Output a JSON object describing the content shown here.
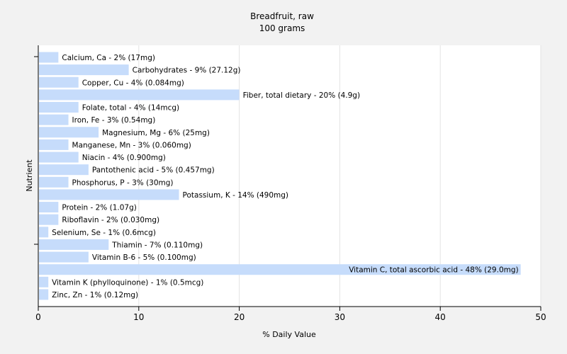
{
  "chart_data": {
    "type": "bar",
    "orientation": "horizontal",
    "title": "Breadfruit, raw",
    "subtitle": "100 grams",
    "xlabel": "% Daily Value",
    "ylabel": "Nutrient",
    "xlim": [
      0,
      50
    ],
    "xticks": [
      0,
      10,
      20,
      30,
      40,
      50
    ],
    "grid": true,
    "bar_color": "#c6dcfb",
    "categories": [
      "Calcium, Ca",
      "Carbohydrates",
      "Copper, Cu",
      "Fiber, total dietary",
      "Folate, total",
      "Iron, Fe",
      "Magnesium, Mg",
      "Manganese, Mn",
      "Niacin",
      "Pantothenic acid",
      "Phosphorus, P",
      "Potassium, K",
      "Protein",
      "Riboflavin",
      "Selenium, Se",
      "Thiamin",
      "Vitamin B-6",
      "Vitamin C, total ascorbic acid",
      "Vitamin K (phylloquinone)",
      "Zinc, Zn"
    ],
    "values": [
      2,
      9,
      4,
      20,
      4,
      3,
      6,
      3,
      4,
      5,
      3,
      14,
      2,
      2,
      1,
      7,
      5,
      48,
      1,
      1
    ],
    "labels": [
      "Calcium, Ca - 2% (17mg)",
      "Carbohydrates - 9% (27.12g)",
      "Copper, Cu - 4% (0.084mg)",
      "Fiber, total dietary - 20% (4.9g)",
      "Folate, total - 4% (14mcg)",
      "Iron, Fe - 3% (0.54mg)",
      "Magnesium, Mg - 6% (25mg)",
      "Manganese, Mn - 3% (0.060mg)",
      "Niacin - 4% (0.900mg)",
      "Pantothenic acid - 5% (0.457mg)",
      "Phosphorus, P - 3% (30mg)",
      "Potassium, K - 14% (490mg)",
      "Protein - 2% (1.07g)",
      "Riboflavin - 2% (0.030mg)",
      "Selenium, Se - 1% (0.6mcg)",
      "Thiamin - 7% (0.110mg)",
      "Vitamin B-6 - 5% (0.100mg)",
      "Vitamin C, total ascorbic acid - 48% (29.0mg)",
      "Vitamin K (phylloquinone) - 1% (0.5mcg)",
      "Zinc, Zn - 1% (0.12mg)"
    ]
  }
}
